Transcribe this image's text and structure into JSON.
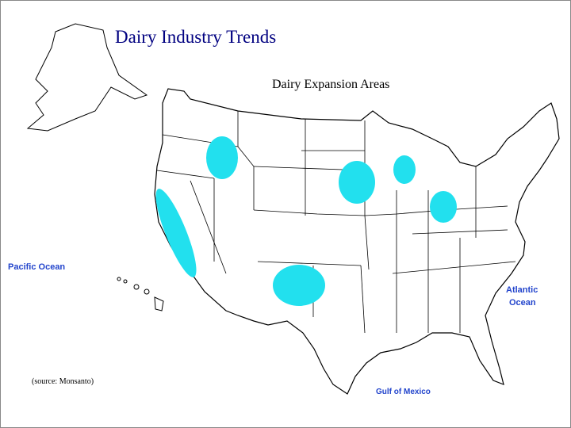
{
  "title": "Dairy Industry Trends",
  "subtitle": "Dairy Expansion Areas",
  "labels": {
    "pacific": "Pacific Ocean",
    "atlantic": [
      "Atlantic",
      "Ocean"
    ],
    "gulf": "Gulf of Mexico"
  },
  "source": "(source: Monsanto)"
}
